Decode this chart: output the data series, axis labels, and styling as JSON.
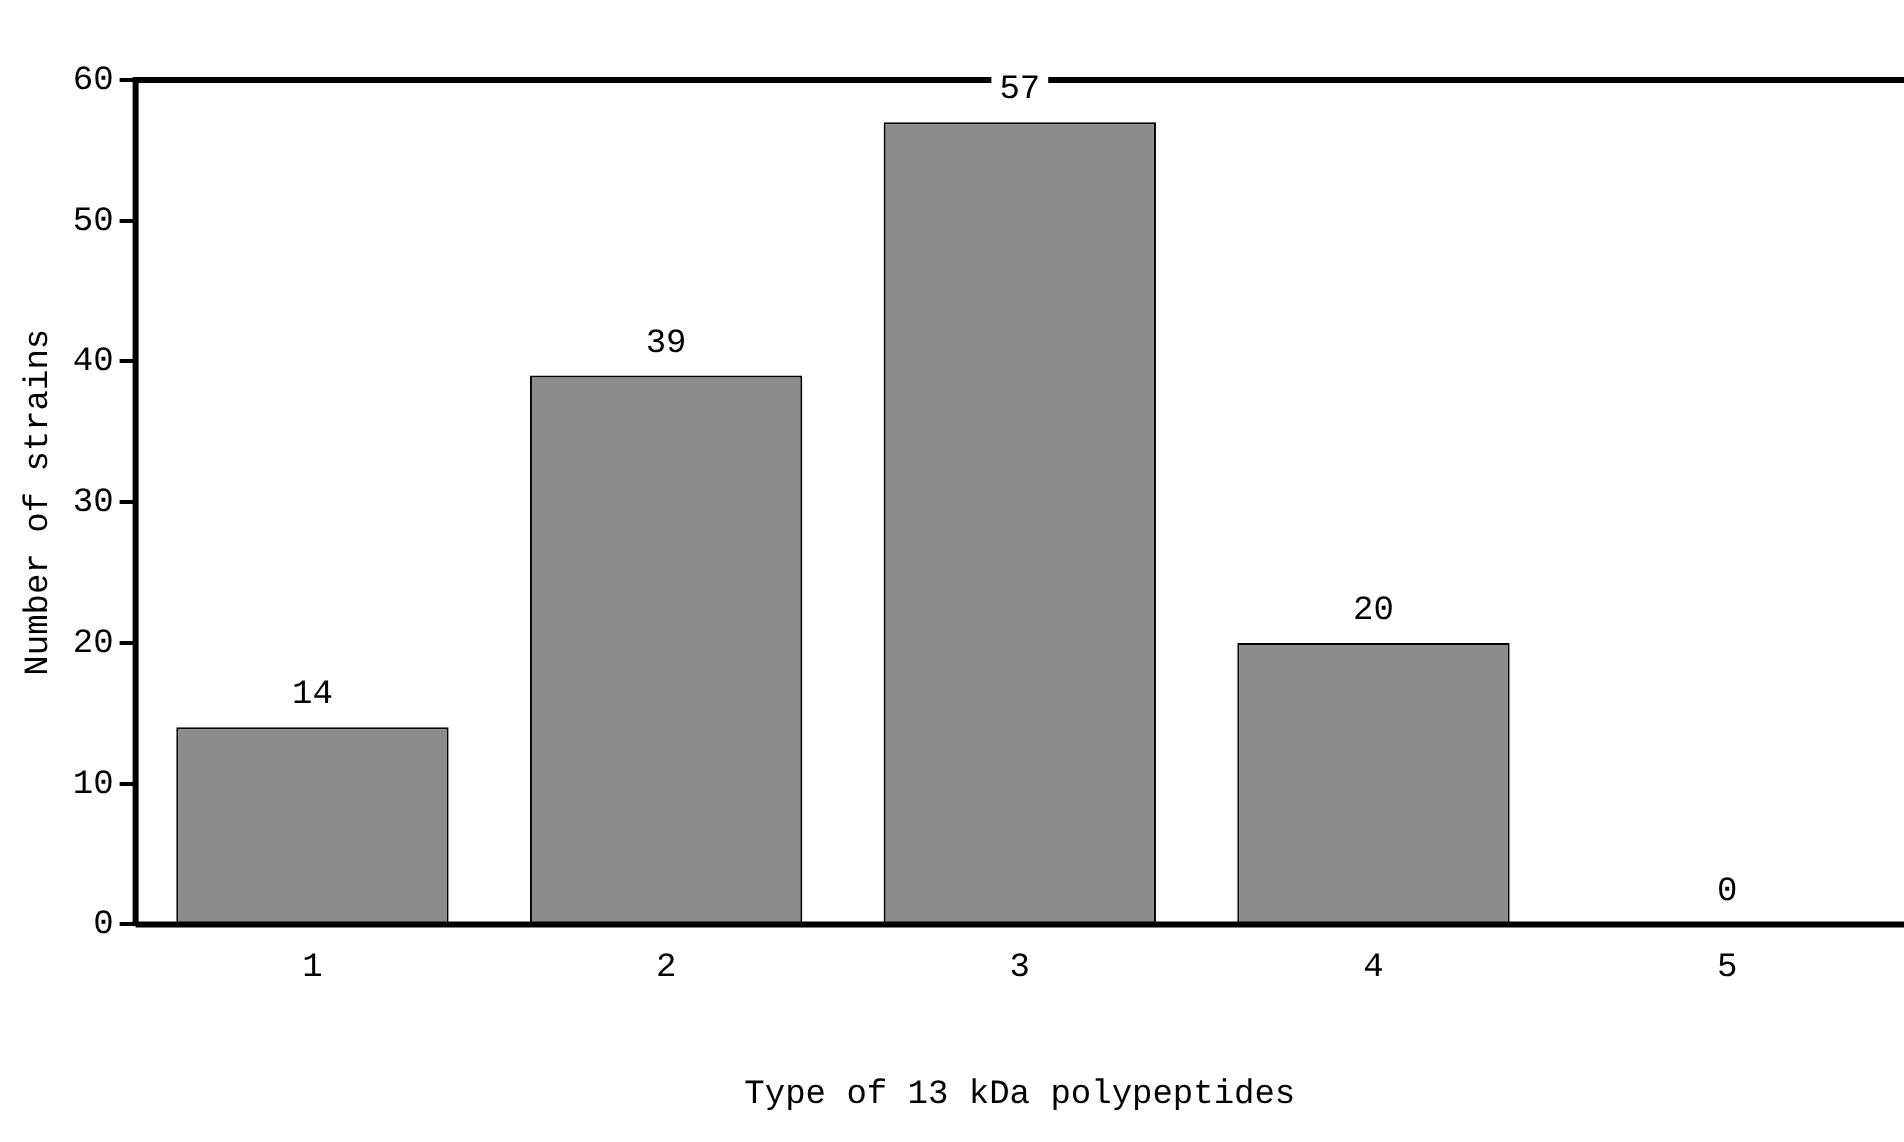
{
  "chart_data": {
    "type": "bar",
    "xlabel": "Type of 13 kDa polypeptides",
    "ylabel": "Number of strains",
    "categories": [
      "1",
      "2",
      "3",
      "4",
      "5"
    ],
    "values": [
      14,
      39,
      57,
      20,
      0
    ],
    "color": "#8c8c8c",
    "ylim": [
      0,
      60
    ],
    "yticks": [
      0,
      10,
      20,
      30,
      40,
      50,
      60
    ],
    "data_labels": true,
    "grid": false,
    "legend": false
  }
}
